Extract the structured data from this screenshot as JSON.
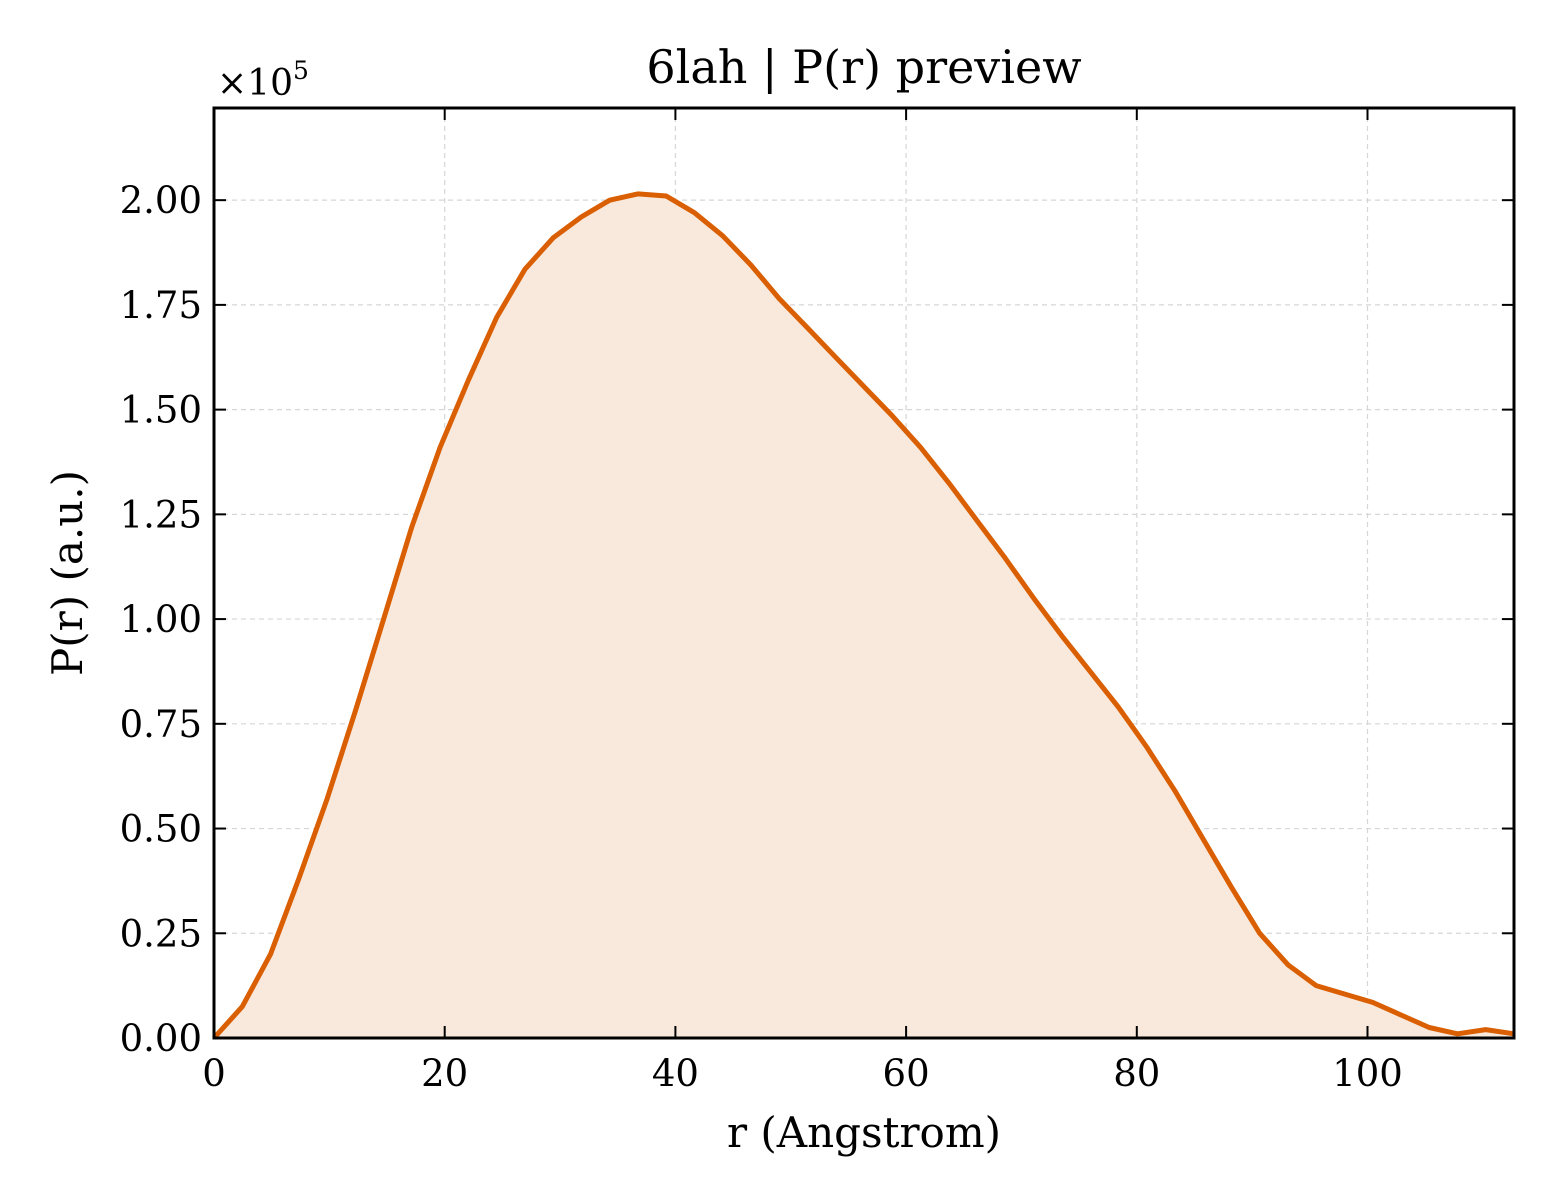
{
  "chart_data": {
    "type": "area",
    "title": "6lah | P(r) preview",
    "xlabel": "r (Angstrom)",
    "ylabel": "P(r) (a.u.)",
    "y_multiplier": {
      "base": "×10",
      "exponent": "5"
    },
    "xlim": [
      0,
      112.7
    ],
    "ylim": [
      0,
      2.22
    ],
    "xticks": [
      0,
      20,
      40,
      60,
      80,
      100
    ],
    "xtick_labels": [
      "0",
      "20",
      "40",
      "60",
      "80",
      "100"
    ],
    "yticks": [
      0,
      0.25,
      0.5,
      0.75,
      1.0,
      1.25,
      1.5,
      1.75,
      2.0
    ],
    "ytick_labels": [
      "0.00",
      "0.25",
      "0.50",
      "0.75",
      "1.00",
      "1.25",
      "1.50",
      "1.75",
      "2.00"
    ],
    "grid": true,
    "colors": {
      "line": "#d95f02",
      "fill": "#f9e8dc",
      "grid": "#d6d6d6"
    },
    "series": [
      {
        "x": [
          0,
          2.45,
          4.9,
          7.35,
          9.8,
          12.25,
          14.7,
          17.15,
          19.6,
          22.05,
          24.5,
          26.95,
          29.4,
          31.85,
          34.3,
          36.75,
          39.2,
          41.65,
          44.1,
          46.55,
          49.0,
          51.45,
          53.9,
          56.35,
          58.8,
          61.25,
          63.7,
          66.15,
          68.6,
          71.05,
          73.5,
          75.95,
          78.4,
          80.85,
          83.3,
          85.75,
          88.2,
          90.65,
          93.1,
          95.55,
          98.0,
          100.45,
          102.9,
          105.35,
          107.8,
          110.25,
          112.7
        ],
        "y": [
          0.0,
          0.075,
          0.2,
          0.38,
          0.57,
          0.78,
          1.0,
          1.22,
          1.41,
          1.57,
          1.72,
          1.835,
          1.91,
          1.96,
          2.0,
          2.015,
          2.01,
          1.97,
          1.915,
          1.845,
          1.765,
          1.695,
          1.625,
          1.555,
          1.485,
          1.41,
          1.325,
          1.235,
          1.145,
          1.05,
          0.96,
          0.875,
          0.79,
          0.695,
          0.59,
          0.475,
          0.36,
          0.25,
          0.175,
          0.125,
          0.105,
          0.085,
          0.055,
          0.025,
          0.01,
          0.02,
          0.01
        ]
      }
    ]
  }
}
